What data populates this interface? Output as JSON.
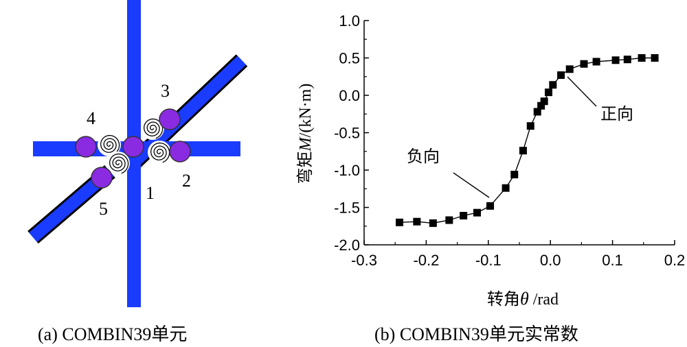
{
  "panel_a": {
    "node_labels": [
      "1",
      "2",
      "3",
      "4",
      "5"
    ],
    "caption": "(a) COMBIN39单元",
    "colors": {
      "member": "#1a3cff",
      "node": "#8a2be2",
      "outline": "#000000",
      "spring": "#000000"
    },
    "icons": [
      "spring-icon",
      "node-circle-icon"
    ]
  },
  "panel_b": {
    "caption": "(b) COMBIN39单元实常数",
    "annotations": {
      "positive": "正向",
      "negative": "负向"
    },
    "chart_data": {
      "type": "line",
      "ylabel": "弯矩M/(kN·m)",
      "ylabel_parts": {
        "prefix": "弯矩",
        "var": "M",
        "suffix": "/(kN·m)"
      },
      "xlabel": "转角θ /rad",
      "xlabel_parts": {
        "prefix": "转角",
        "var": "θ",
        "suffix": " /rad"
      },
      "xlim": [
        -0.3,
        0.2
      ],
      "ylim": [
        -2.0,
        1.0
      ],
      "xticks": [
        -0.3,
        -0.2,
        -0.1,
        0.0,
        0.1,
        0.2
      ],
      "xtick_labels": [
        "-0.3",
        "-0.2",
        "-0.1",
        "0.0",
        "0.1",
        "0.2"
      ],
      "yticks": [
        1.0,
        0.5,
        0.0,
        -0.5,
        -1.0,
        -1.5,
        -2.0
      ],
      "ytick_labels": [
        "1.0",
        "0.5",
        "0.0",
        "-0.5",
        "-1.0",
        "-1.5",
        "-2.0"
      ],
      "grid": false,
      "marker": "square",
      "series": [
        {
          "x": [
            -0.243,
            -0.215,
            -0.189,
            -0.163,
            -0.14,
            -0.118,
            -0.097,
            -0.072,
            -0.058,
            -0.044,
            -0.032,
            -0.021,
            -0.015,
            -0.01,
            -0.003,
            0.004,
            0.017,
            0.031,
            0.054,
            0.074,
            0.105,
            0.124,
            0.147,
            0.168
          ],
          "y": [
            -1.7,
            -1.69,
            -1.71,
            -1.67,
            -1.61,
            -1.57,
            -1.48,
            -1.24,
            -1.06,
            -0.74,
            -0.41,
            -0.22,
            -0.14,
            -0.08,
            0.04,
            0.14,
            0.27,
            0.35,
            0.42,
            0.45,
            0.47,
            0.48,
            0.5,
            0.5
          ]
        }
      ]
    }
  }
}
